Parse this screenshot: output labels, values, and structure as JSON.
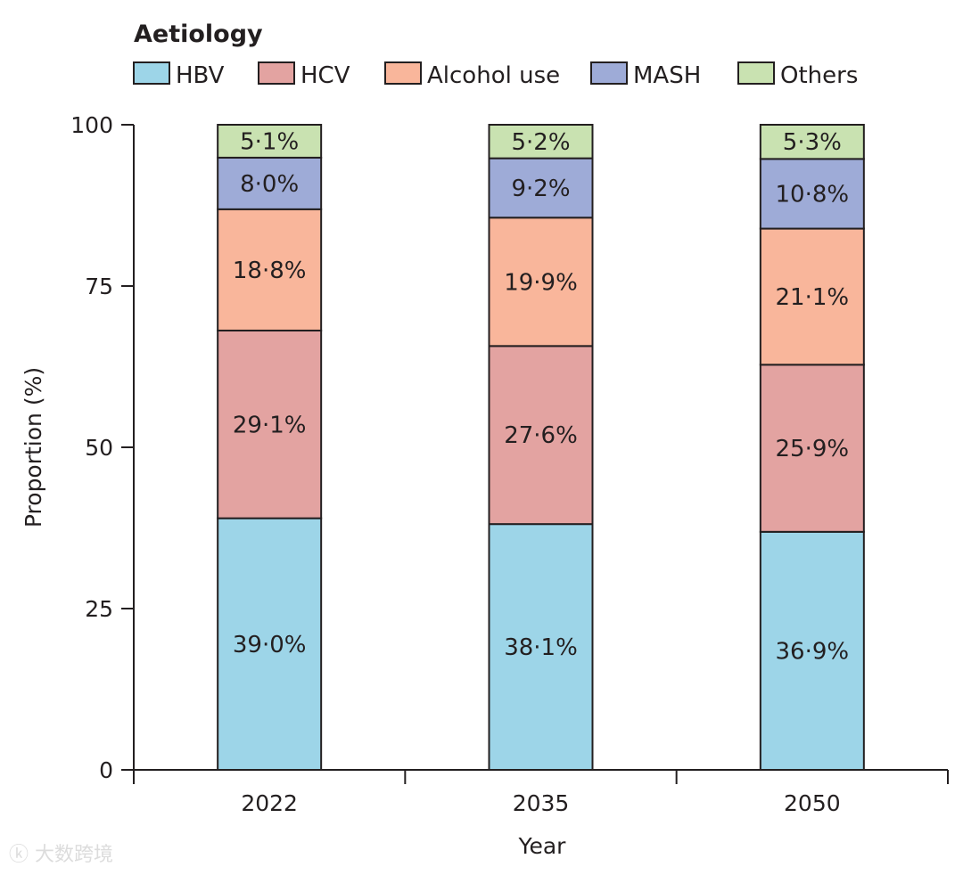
{
  "chart_data": {
    "type": "bar",
    "stacked": true,
    "legend_title": "Aetiology",
    "legend_position": "top-left",
    "xlabel": "Year",
    "ylabel": "Proportion (%)",
    "ylim": [
      0,
      100
    ],
    "yticks": [
      "0",
      "25",
      "50",
      "75",
      "100"
    ],
    "categories": [
      "2022",
      "2035",
      "2050"
    ],
    "series": [
      {
        "name": "HBV",
        "color": "#9dd5e8",
        "values": [
          39.0,
          38.1,
          36.9
        ],
        "labels": [
          "39·0%",
          "38·1%",
          "36·9%"
        ]
      },
      {
        "name": "HCV",
        "color": "#e3a3a1",
        "values": [
          29.1,
          27.6,
          25.9
        ],
        "labels": [
          "29·1%",
          "27·6%",
          "25·9%"
        ]
      },
      {
        "name": "Alcohol use",
        "color": "#f9b69b",
        "values": [
          18.8,
          19.9,
          21.1
        ],
        "labels": [
          "18·8%",
          "19·9%",
          "21·1%"
        ]
      },
      {
        "name": "MASH",
        "color": "#9eabd7",
        "values": [
          8.0,
          9.2,
          10.8
        ],
        "labels": [
          "8·0%",
          "9·2%",
          "10·8%"
        ]
      },
      {
        "name": "Others",
        "color": "#c9e2b1",
        "values": [
          5.1,
          5.2,
          5.3
        ],
        "labels": [
          "5·1%",
          "5·2%",
          "5·3%"
        ]
      }
    ]
  },
  "watermark": "大数跨境"
}
